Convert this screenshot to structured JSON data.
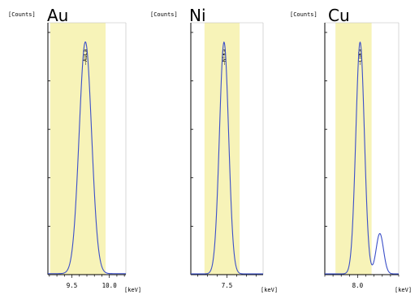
{
  "colors": {
    "band": "#f7f3b8",
    "curve": "#3b4fc8",
    "axis": "#000000"
  },
  "chart_data": [
    {
      "type": "line",
      "title": "Au",
      "ylabel": "[Counts]",
      "xlabel": "[keV]",
      "xlim": [
        9.18,
        10.22
      ],
      "ylim": [
        0,
        100
      ],
      "x_ticks": [
        9.5,
        10.0
      ],
      "x_tick_labels": [
        "9.5",
        "10.0"
      ],
      "highlight_range": [
        9.21,
        9.95
      ],
      "peak_label": "—AuLa",
      "peak_label_x": 9.68,
      "peaks": [
        {
          "center": 9.68,
          "height": 92,
          "sigma": 0.083
        }
      ],
      "baseline": 0.4
    },
    {
      "type": "line",
      "title": "Ni",
      "ylabel": "[Counts]",
      "xlabel": "[keV]",
      "xlim": [
        7.13,
        7.87
      ],
      "ylim": [
        0,
        100
      ],
      "x_ticks": [
        7.5
      ],
      "x_tick_labels": [
        "7.5"
      ],
      "highlight_range": [
        7.27,
        7.63
      ],
      "peak_label": "—NiKa",
      "peak_label_x": 7.47,
      "peaks": [
        {
          "center": 7.47,
          "height": 92,
          "sigma": 0.047
        }
      ],
      "baseline": 0.3
    },
    {
      "type": "line",
      "title": "Cu",
      "ylabel": "[Counts]",
      "xlabel": "[keV]",
      "xlim": [
        7.6,
        8.5
      ],
      "ylim": [
        0,
        100
      ],
      "x_ticks": [
        8.0
      ],
      "x_tick_labels": [
        "8.0"
      ],
      "highlight_range": [
        7.73,
        8.17
      ],
      "peak_label": "—CuKa",
      "peak_label_x": 8.03,
      "peaks": [
        {
          "center": 8.03,
          "height": 92,
          "sigma": 0.052
        },
        {
          "center": 8.27,
          "height": 16,
          "sigma": 0.045
        }
      ],
      "baseline": 0.3
    }
  ]
}
